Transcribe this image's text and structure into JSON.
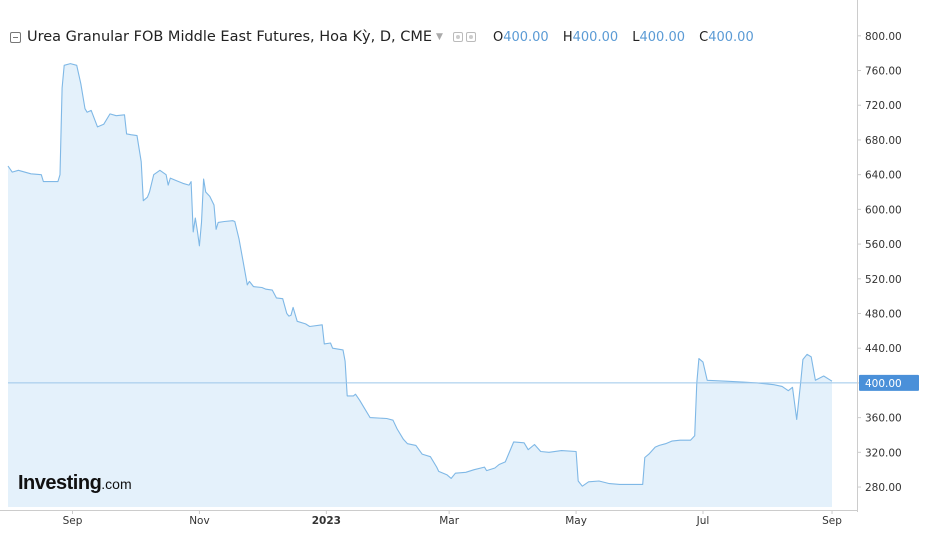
{
  "legend": {
    "title": "Urea Granular FOB Middle East Futures, Hoa Kỳ, D, CME",
    "o_label": "O",
    "o_value": "400.00",
    "h_label": "H",
    "h_value": "400.00",
    "l_label": "L",
    "l_value": "400.00",
    "c_label": "C",
    "c_value": "400.00"
  },
  "logo": {
    "main": "Investing",
    "suffix": ".com"
  },
  "colors": {
    "line": "#7fb8e6",
    "fill": "#e4f1fb",
    "tag": "#4a90d9",
    "axis": "#cccccc"
  },
  "chart_data": {
    "type": "area",
    "ylim": [
      257,
      824
    ],
    "y_ticks": [
      "800.00",
      "760.00",
      "720.00",
      "680.00",
      "640.00",
      "600.00",
      "560.00",
      "520.00",
      "480.00",
      "440.00",
      "400.00",
      "360.00",
      "320.00",
      "280.00"
    ],
    "x_range": [
      "2022-08-01",
      "2023-09-13"
    ],
    "x_ticks": [
      {
        "label": "Sep",
        "date": "2022-09-01",
        "bold": false
      },
      {
        "label": "Nov",
        "date": "2022-11-01",
        "bold": false
      },
      {
        "label": "2023",
        "date": "2023-01-01",
        "bold": true
      },
      {
        "label": "Mar",
        "date": "2023-03-01",
        "bold": false
      },
      {
        "label": "May",
        "date": "2023-05-01",
        "bold": false
      },
      {
        "label": "Jul",
        "date": "2023-07-01",
        "bold": false
      },
      {
        "label": "Sep",
        "date": "2023-09-01",
        "bold": false
      }
    ],
    "last_price": "400.00",
    "series": [
      {
        "points": [
          [
            "2022-08-01",
            650
          ],
          [
            "2022-08-03",
            643
          ],
          [
            "2022-08-06",
            645
          ],
          [
            "2022-08-12",
            641
          ],
          [
            "2022-08-17",
            640
          ],
          [
            "2022-08-18",
            632
          ],
          [
            "2022-08-25",
            632
          ],
          [
            "2022-08-26",
            640
          ],
          [
            "2022-08-27",
            740
          ],
          [
            "2022-08-28",
            766
          ],
          [
            "2022-08-31",
            768
          ],
          [
            "2022-09-03",
            766
          ],
          [
            "2022-09-05",
            745
          ],
          [
            "2022-09-07",
            716
          ],
          [
            "2022-09-08",
            712
          ],
          [
            "2022-09-10",
            714
          ],
          [
            "2022-09-13",
            695
          ],
          [
            "2022-09-16",
            698
          ],
          [
            "2022-09-19",
            710
          ],
          [
            "2022-09-22",
            708
          ],
          [
            "2022-09-26",
            709
          ],
          [
            "2022-09-27",
            687
          ],
          [
            "2022-09-29",
            686
          ],
          [
            "2022-10-02",
            685
          ],
          [
            "2022-10-04",
            655
          ],
          [
            "2022-10-05",
            610
          ],
          [
            "2022-10-07",
            614
          ],
          [
            "2022-10-08",
            620
          ],
          [
            "2022-10-10",
            640
          ],
          [
            "2022-10-13",
            645
          ],
          [
            "2022-10-16",
            640
          ],
          [
            "2022-10-17",
            628
          ],
          [
            "2022-10-18",
            636
          ],
          [
            "2022-10-21",
            633
          ],
          [
            "2022-10-24",
            630
          ],
          [
            "2022-10-27",
            628
          ],
          [
            "2022-10-28",
            632
          ],
          [
            "2022-10-29",
            574
          ],
          [
            "2022-10-30",
            590
          ],
          [
            "2022-10-31",
            575
          ],
          [
            "2022-11-01",
            558
          ],
          [
            "2022-11-02",
            585
          ],
          [
            "2022-11-03",
            635
          ],
          [
            "2022-11-04",
            620
          ],
          [
            "2022-11-06",
            615
          ],
          [
            "2022-11-08",
            605
          ],
          [
            "2022-11-09",
            577
          ],
          [
            "2022-11-10",
            585
          ],
          [
            "2022-11-13",
            586
          ],
          [
            "2022-11-17",
            587
          ],
          [
            "2022-11-18",
            586
          ],
          [
            "2022-11-20",
            566
          ],
          [
            "2022-11-22",
            540
          ],
          [
            "2022-11-24",
            513
          ],
          [
            "2022-11-25",
            517
          ],
          [
            "2022-11-27",
            511
          ],
          [
            "2022-12-01",
            510
          ],
          [
            "2022-12-03",
            508
          ],
          [
            "2022-12-06",
            507
          ],
          [
            "2022-12-08",
            498
          ],
          [
            "2022-12-11",
            497
          ],
          [
            "2022-12-13",
            480
          ],
          [
            "2022-12-14",
            477
          ],
          [
            "2022-12-15",
            478
          ],
          [
            "2022-12-16",
            487
          ],
          [
            "2022-12-18",
            471
          ],
          [
            "2022-12-22",
            468
          ],
          [
            "2022-12-24",
            465
          ],
          [
            "2022-12-30",
            467
          ],
          [
            "2022-12-31",
            445
          ],
          [
            "2023-01-03",
            446
          ],
          [
            "2023-01-04",
            440
          ],
          [
            "2023-01-09",
            438
          ],
          [
            "2023-01-10",
            425
          ],
          [
            "2023-01-11",
            385
          ],
          [
            "2023-01-14",
            385
          ],
          [
            "2023-01-15",
            387
          ],
          [
            "2023-01-17",
            380
          ],
          [
            "2023-01-19",
            372
          ],
          [
            "2023-01-22",
            360
          ],
          [
            "2023-01-30",
            359
          ],
          [
            "2023-02-02",
            357
          ],
          [
            "2023-02-04",
            347
          ],
          [
            "2023-02-07",
            335
          ],
          [
            "2023-02-09",
            330
          ],
          [
            "2023-02-13",
            328
          ],
          [
            "2023-02-16",
            318
          ],
          [
            "2023-02-20",
            315
          ],
          [
            "2023-02-23",
            303
          ],
          [
            "2023-02-24",
            298
          ],
          [
            "2023-02-28",
            294
          ],
          [
            "2023-03-02",
            290
          ],
          [
            "2023-03-04",
            296
          ],
          [
            "2023-03-09",
            297
          ],
          [
            "2023-03-13",
            300
          ],
          [
            "2023-03-18",
            303
          ],
          [
            "2023-03-19",
            299
          ],
          [
            "2023-03-23",
            302
          ],
          [
            "2023-03-25",
            306
          ],
          [
            "2023-03-28",
            309
          ],
          [
            "2023-04-01",
            332
          ],
          [
            "2023-04-06",
            331
          ],
          [
            "2023-04-08",
            323
          ],
          [
            "2023-04-11",
            329
          ],
          [
            "2023-04-14",
            321
          ],
          [
            "2023-04-18",
            320
          ],
          [
            "2023-04-24",
            322
          ],
          [
            "2023-05-01",
            321
          ],
          [
            "2023-05-02",
            287
          ],
          [
            "2023-05-04",
            281
          ],
          [
            "2023-05-07",
            286
          ],
          [
            "2023-05-12",
            287
          ],
          [
            "2023-05-17",
            284
          ],
          [
            "2023-05-22",
            283
          ],
          [
            "2023-05-27",
            283
          ],
          [
            "2023-06-01",
            283
          ],
          [
            "2023-06-02",
            283
          ],
          [
            "2023-06-03",
            314
          ],
          [
            "2023-06-05",
            318
          ],
          [
            "2023-06-08",
            326
          ],
          [
            "2023-06-10",
            328
          ],
          [
            "2023-06-13",
            330
          ],
          [
            "2023-06-16",
            333
          ],
          [
            "2023-06-20",
            334
          ],
          [
            "2023-06-25",
            334
          ],
          [
            "2023-06-27",
            339
          ],
          [
            "2023-06-28",
            400
          ],
          [
            "2023-06-29",
            428
          ],
          [
            "2023-07-01",
            424
          ],
          [
            "2023-07-03",
            403
          ],
          [
            "2023-07-12",
            402
          ],
          [
            "2023-07-20",
            401
          ],
          [
            "2023-07-27",
            400
          ],
          [
            "2023-08-04",
            398
          ],
          [
            "2023-08-08",
            396
          ],
          [
            "2023-08-11",
            391
          ],
          [
            "2023-08-13",
            395
          ],
          [
            "2023-08-15",
            358
          ],
          [
            "2023-08-17",
            402
          ],
          [
            "2023-08-18",
            427
          ],
          [
            "2023-08-20",
            433
          ],
          [
            "2023-08-22",
            430
          ],
          [
            "2023-08-24",
            403
          ],
          [
            "2023-08-28",
            408
          ],
          [
            "2023-09-01",
            402
          ]
        ]
      }
    ]
  }
}
